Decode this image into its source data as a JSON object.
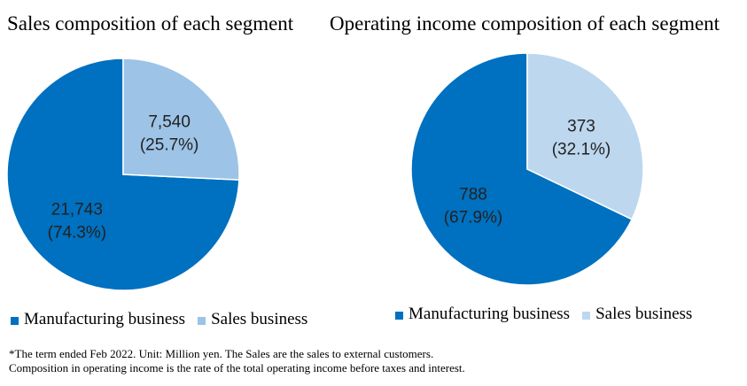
{
  "colors": {
    "manufacturing": "#0070C0",
    "sales": "#9DC3E6",
    "sales_right": "#BDD7EE"
  },
  "chart_data": [
    {
      "type": "pie",
      "title": "Sales composition of each segment",
      "slices": [
        {
          "name": "Manufacturing business",
          "value": 21743,
          "label": "21,743",
          "percent_label": "(74.3%)"
        },
        {
          "name": "Sales business",
          "value": 7540,
          "label": "7,540",
          "percent_label": "(25.7%)"
        }
      ],
      "start_angle": "12 o'clock",
      "direction": "counterclockwise",
      "legend": {
        "placement": "bottom",
        "entries": [
          "Manufacturing business",
          "Sales business"
        ]
      }
    },
    {
      "type": "pie",
      "title": "Operating income composition of each segment",
      "slices": [
        {
          "name": "Manufacturing business",
          "value": 788,
          "label": "788",
          "percent_label": "(67.9%)"
        },
        {
          "name": "Sales business",
          "value": 373,
          "label": "373",
          "percent_label": "(32.1%)"
        }
      ],
      "start_angle": "12 o'clock",
      "direction": "counterclockwise",
      "legend": {
        "placement": "bottom",
        "entries": [
          "Manufacturing business",
          "Sales business"
        ]
      }
    }
  ],
  "footnote": {
    "line1": "*The term ended Feb 2022. Unit: Million yen. The Sales are the sales to external customers.",
    "line2": "Composition in operating income is the rate of the total operating income before taxes and interest."
  }
}
